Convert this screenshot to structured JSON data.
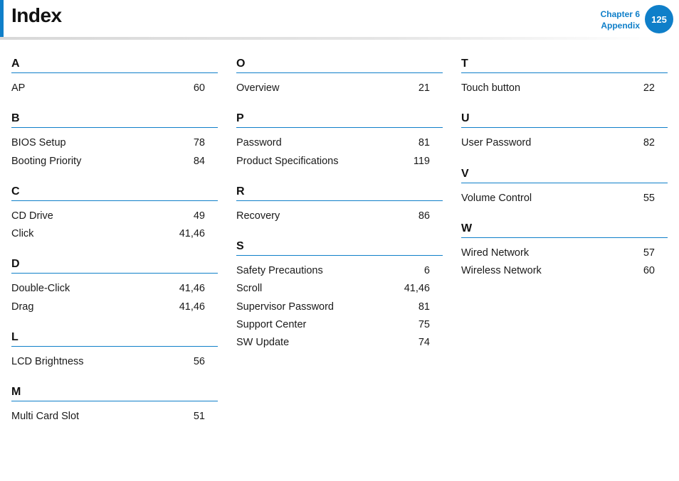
{
  "header": {
    "title": "Index",
    "chapter_label": "Chapter 6",
    "chapter_name": "Appendix",
    "page_number": "125",
    "accent_color": "#0f7fc9"
  },
  "columns": [
    {
      "sections": [
        {
          "letter": "A",
          "entries": [
            {
              "term": "AP",
              "page": "60"
            }
          ]
        },
        {
          "letter": "B",
          "entries": [
            {
              "term": "BIOS Setup",
              "page": "78"
            },
            {
              "term": "Booting Priority",
              "page": "84"
            }
          ]
        },
        {
          "letter": "C",
          "entries": [
            {
              "term": "CD Drive",
              "page": "49"
            },
            {
              "term": "Click",
              "page": "41,46"
            }
          ]
        },
        {
          "letter": "D",
          "entries": [
            {
              "term": "Double-Click",
              "page": "41,46"
            },
            {
              "term": "Drag",
              "page": "41,46"
            }
          ]
        },
        {
          "letter": "L",
          "entries": [
            {
              "term": "LCD Brightness",
              "page": "56"
            }
          ]
        },
        {
          "letter": "M",
          "entries": [
            {
              "term": "Multi Card Slot",
              "page": "51"
            }
          ]
        }
      ]
    },
    {
      "sections": [
        {
          "letter": "O",
          "entries": [
            {
              "term": "Overview",
              "page": "21"
            }
          ]
        },
        {
          "letter": "P",
          "entries": [
            {
              "term": "Password",
              "page": "81"
            },
            {
              "term": "Product Specifications",
              "page": "119"
            }
          ]
        },
        {
          "letter": "R",
          "entries": [
            {
              "term": "Recovery",
              "page": "86"
            }
          ]
        },
        {
          "letter": "S",
          "entries": [
            {
              "term": "Safety Precautions",
              "page": "6"
            },
            {
              "term": "Scroll",
              "page": "41,46"
            },
            {
              "term": "Supervisor Password",
              "page": "81"
            },
            {
              "term": "Support Center",
              "page": "75"
            },
            {
              "term": "SW Update",
              "page": "74"
            }
          ]
        }
      ]
    },
    {
      "sections": [
        {
          "letter": "T",
          "entries": [
            {
              "term": "Touch button",
              "page": "22"
            }
          ]
        },
        {
          "letter": "U",
          "entries": [
            {
              "term": "User Password",
              "page": "82"
            }
          ]
        },
        {
          "letter": "V",
          "entries": [
            {
              "term": "Volume Control",
              "page": "55"
            }
          ]
        },
        {
          "letter": "W",
          "entries": [
            {
              "term": "Wired Network",
              "page": "57"
            },
            {
              "term": "Wireless Network",
              "page": "60"
            }
          ]
        }
      ]
    }
  ]
}
